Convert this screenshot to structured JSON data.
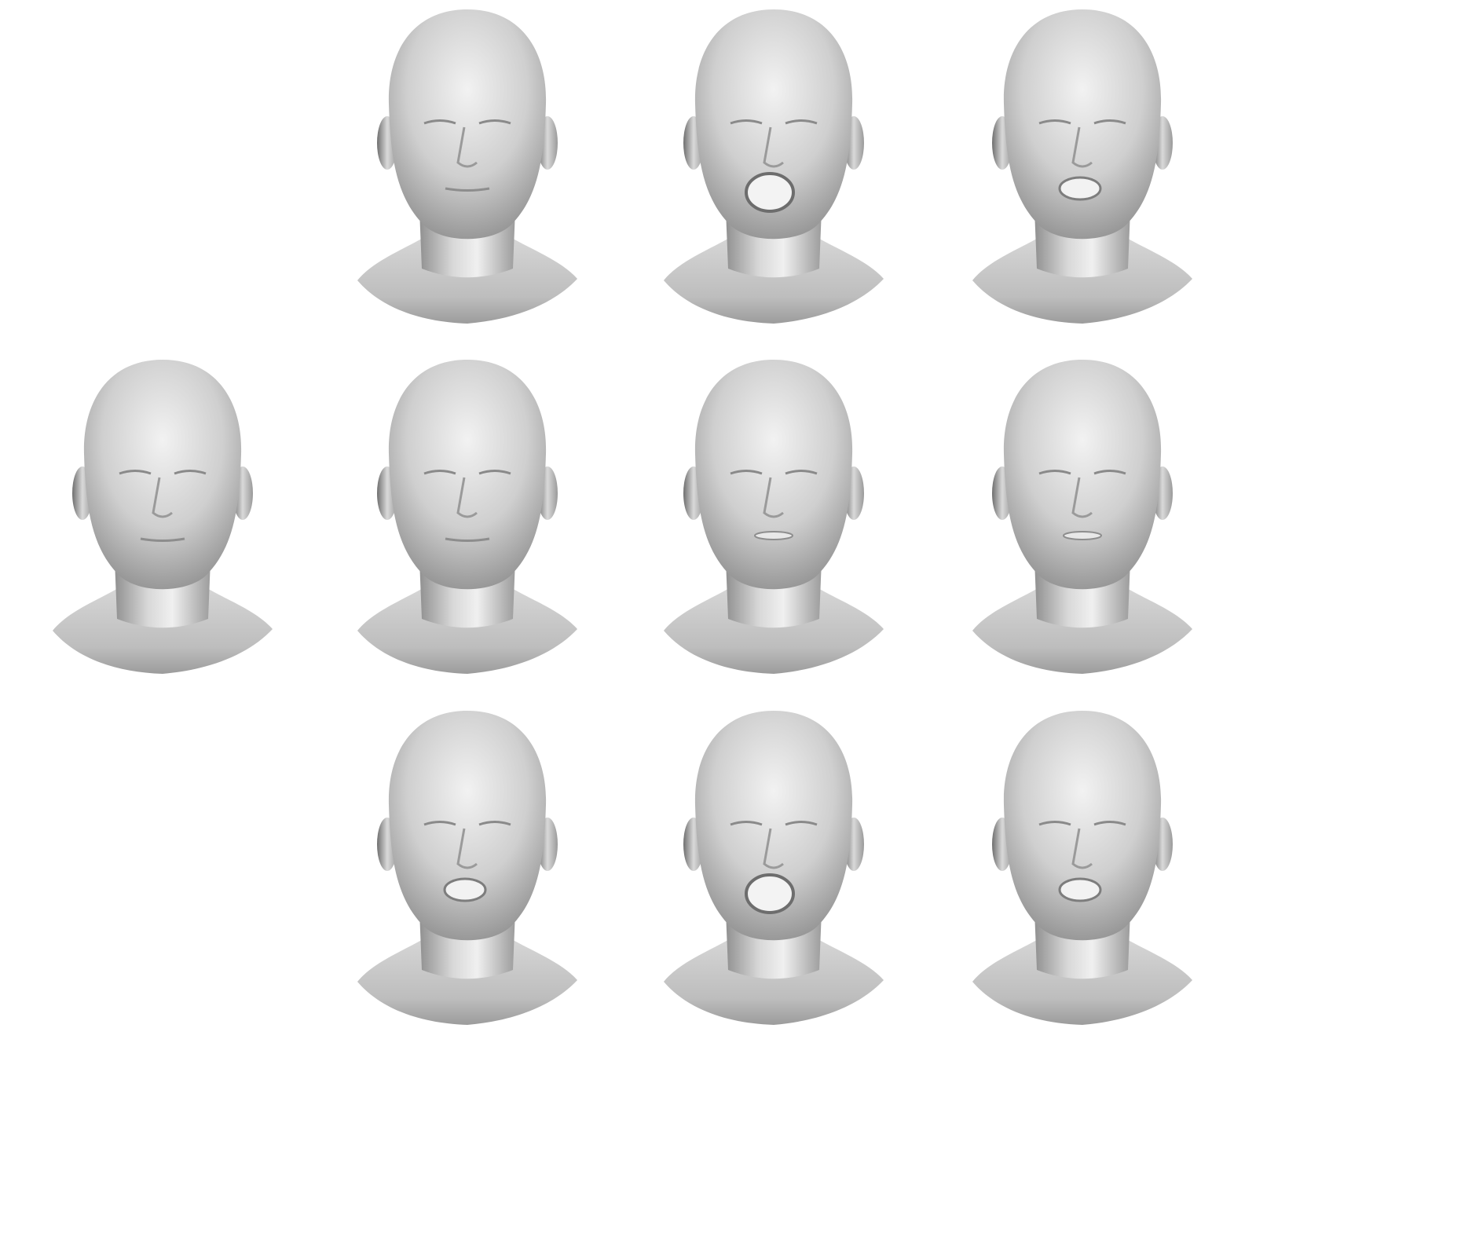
{
  "figure": {
    "background": "#ffffff",
    "mesh_color": "#c9c9c9",
    "mesh_shadow": "#7a7a7a",
    "mesh_highlight": "#f4f4f4",
    "rows": [
      {
        "row": "top",
        "heads": [
          {
            "column": 1,
            "mouth": "closed",
            "expression": "neutral-eyes-closed"
          },
          {
            "column": 2,
            "mouth": "wide-open",
            "expression": "yawn-eyes-squeezed"
          },
          {
            "column": 3,
            "mouth": "open",
            "expression": "open-mouth-eyes-closed"
          }
        ]
      },
      {
        "row": "middle",
        "heads": [
          {
            "column": 0,
            "mouth": "closed",
            "expression": "neutral-reference"
          },
          {
            "column": 1,
            "mouth": "closed",
            "expression": "neutral"
          },
          {
            "column": 2,
            "mouth": "slightly-open",
            "expression": "neutral"
          },
          {
            "column": 3,
            "mouth": "slightly-open",
            "expression": "neutral"
          }
        ]
      },
      {
        "row": "bottom",
        "heads": [
          {
            "column": 1,
            "mouth": "open",
            "expression": "open-mouth-smooth"
          },
          {
            "column": 2,
            "mouth": "wide-open",
            "expression": "yawn-smooth"
          },
          {
            "column": 3,
            "mouth": "open",
            "expression": "open-mouth-smooth"
          }
        ]
      }
    ]
  }
}
